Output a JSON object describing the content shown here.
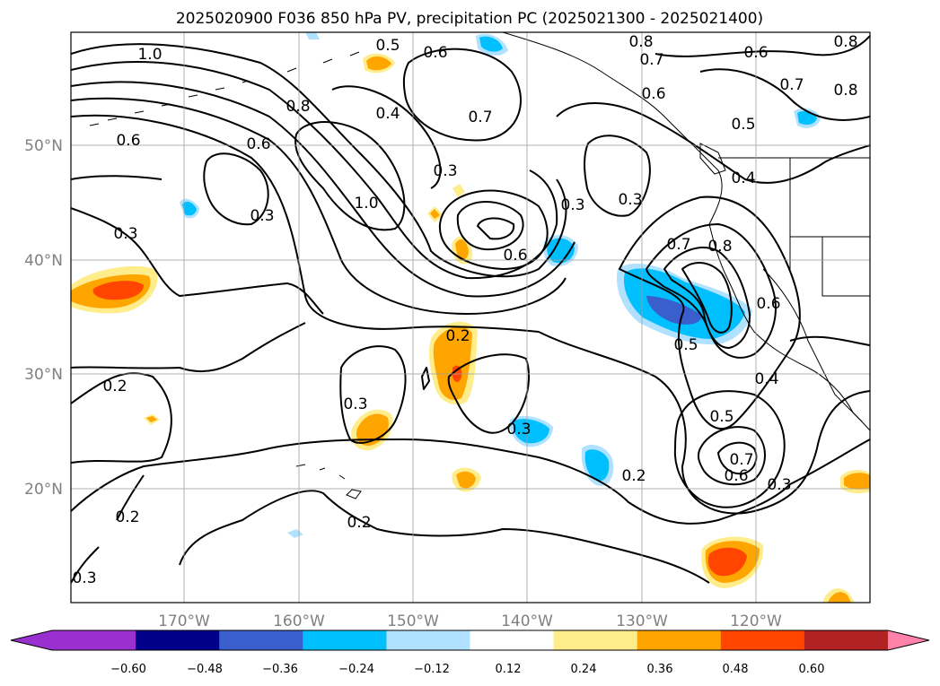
{
  "title": "2025020900 F036 850 hPa PV, precipitation PC (2025021300 - 2025021400)",
  "map": {
    "lat_labels": [
      "50°N",
      "40°N",
      "30°N",
      "20°N"
    ],
    "lon_labels": [
      "170°W",
      "160°W",
      "150°W",
      "140°W",
      "130°W",
      "120°W"
    ],
    "grid": true,
    "extent_lon": [
      -180,
      -110
    ],
    "extent_lat": [
      10,
      60
    ]
  },
  "contour_labels": [
    "1.0",
    "0.5",
    "0.6",
    "0.8",
    "0.7",
    "0.6",
    "0.8",
    "0.7",
    "0.8",
    "0.4",
    "0.6",
    "0.8",
    "0.6",
    "0.7",
    "0.5",
    "0.6",
    "0.3",
    "0.4",
    "1.0",
    "0.3",
    "0.3",
    "0.3",
    "0.6",
    "0.7",
    "0.8",
    "0.6",
    "0.5",
    "0.3",
    "0.2",
    "0.3",
    "0.2",
    "0.3",
    "0.4",
    "0.5",
    "0.7",
    "0.6",
    "0.3",
    "0.2",
    "0.2",
    "0.2",
    "0.3"
  ],
  "colorbar": {
    "ticks": [
      "−0.60",
      "−0.48",
      "−0.36",
      "−0.24",
      "−0.12",
      "0.12",
      "0.24",
      "0.36",
      "0.48",
      "0.60"
    ],
    "colors": [
      "#9b30d0",
      "#00008b",
      "#3a5fcd",
      "#00bfff",
      "#b0e2ff",
      "#ffffff",
      "#ffec8b",
      "#ffa500",
      "#ff4500",
      "#b22222",
      "#ff82ab",
      "#ff82ab"
    ]
  }
}
